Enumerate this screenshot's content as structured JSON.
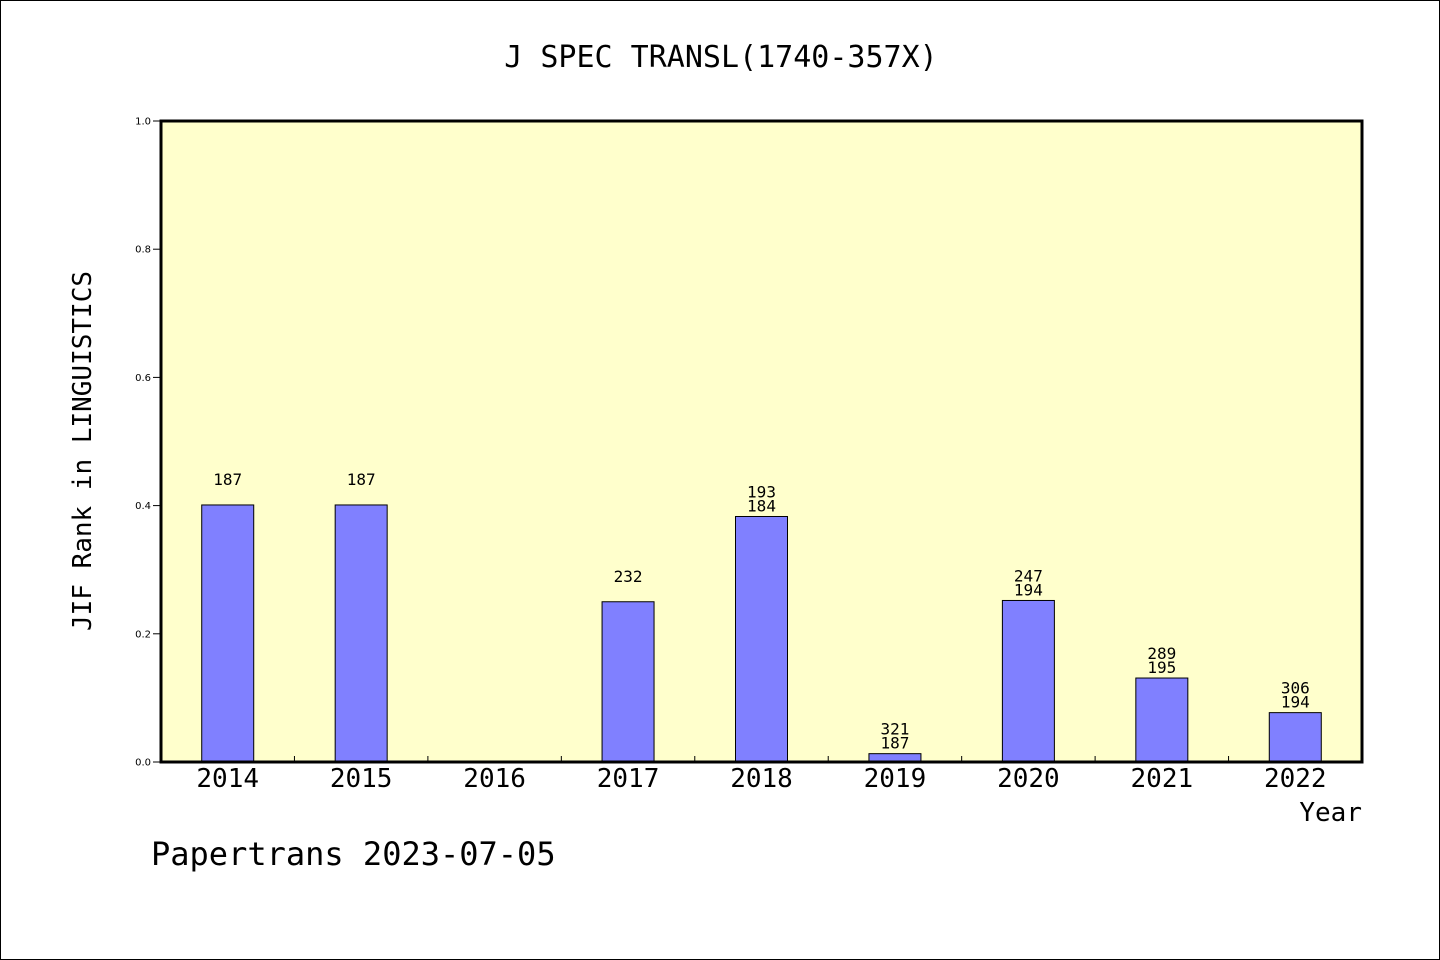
{
  "chart_data": {
    "type": "bar",
    "title": "J SPEC TRANSL(1740-357X)",
    "xlabel": "Year",
    "ylabel": "JIF Rank in LINGUISTICS",
    "footer": "Papertrans 2023-07-05",
    "categories": [
      "2014",
      "2015",
      "2016",
      "2017",
      "2018",
      "2019",
      "2020",
      "2021",
      "2022"
    ],
    "values": [
      0.401,
      0.401,
      null,
      0.25,
      0.383,
      0.013,
      0.252,
      0.131,
      0.077
    ],
    "bar_labels": [
      [
        "187"
      ],
      [
        "187"
      ],
      [],
      [
        "232"
      ],
      [
        "193",
        "184"
      ],
      [
        "321",
        "187"
      ],
      [
        "247",
        "194"
      ],
      [
        "289",
        "195"
      ],
      [
        "306",
        "194"
      ]
    ],
    "ylim": [
      0,
      1.0
    ],
    "yticks": [
      "0.0",
      "0.2",
      "0.4",
      "0.6",
      "0.8",
      "1.0"
    ],
    "grid": false,
    "colors": {
      "plot_background": "#ffffcc",
      "bar_fill": "#8080ff",
      "bar_stroke": "#000000"
    }
  }
}
